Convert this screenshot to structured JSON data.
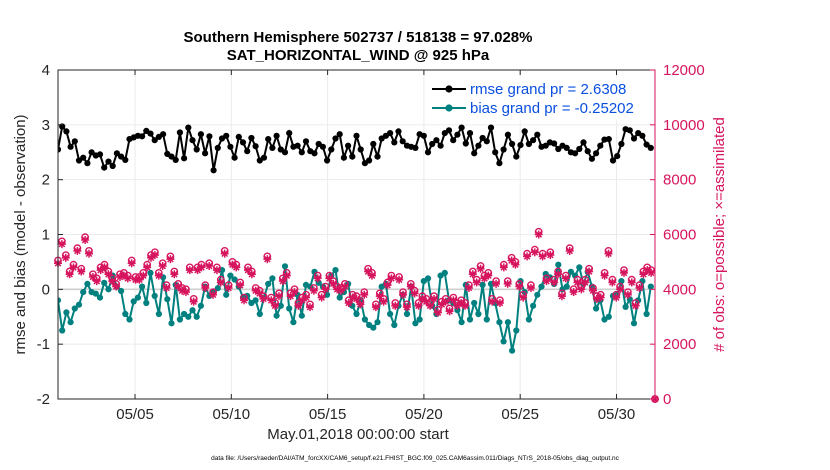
{
  "chart_data": {
    "type": "line",
    "title": "Southern Hemisphere 502737 / 518138 = 97.028%",
    "subtitle": "SAT_HORIZONTAL_WIND @ 925 hPa",
    "xlabel": "May.01,2018 00:00:00 start",
    "ylabel": "rmse and bias (model - observation)",
    "y2label": "# of obs: o=possible; ×=assimilated",
    "footnote": "data file: /Users/raeder/DAI/ATM_forcXX/CAM6_setup/f.e21.FHIST_BGC.f09_025.CAM6assim.011/Diags_NTrS_2018-05/obs_diag_output.nc",
    "xlim": [
      1,
      32
    ],
    "ylim": [
      -2,
      4
    ],
    "y2lim": [
      0,
      12000
    ],
    "x_tick_labels": [
      "05/05",
      "05/10",
      "05/15",
      "05/20",
      "05/25",
      "05/30"
    ],
    "y_tick_labels": [
      "4",
      "3",
      "2",
      "1",
      "0",
      "-1",
      "-2"
    ],
    "y2_tick_labels": [
      "12000",
      "10000",
      "8000",
      "6000",
      "4000",
      "2000",
      "0"
    ],
    "colors": {
      "rmse": "#000000",
      "bias": "#00807f",
      "obs": "#d6155e",
      "legend_text": "#0a4fe0",
      "axis_right": "#d6155e"
    },
    "series": [
      {
        "name": "rmse grand pr = 2.6308",
        "axis": "left",
        "values": [
          2.55,
          2.97,
          2.88,
          2.6,
          2.7,
          2.35,
          2.4,
          2.3,
          2.5,
          2.44,
          2.46,
          2.22,
          2.33,
          2.25,
          2.48,
          2.42,
          2.36,
          2.74,
          2.77,
          2.8,
          2.79,
          2.89,
          2.84,
          2.72,
          2.78,
          2.83,
          2.47,
          2.42,
          2.36,
          2.86,
          2.39,
          2.95,
          2.72,
          2.55,
          2.83,
          2.48,
          2.79,
          2.17,
          2.58,
          2.75,
          2.8,
          2.6,
          2.4,
          2.78,
          2.68,
          2.52,
          2.76,
          2.61,
          2.35,
          2.4,
          2.74,
          2.58,
          2.8,
          2.55,
          2.5,
          2.85,
          2.6,
          2.62,
          2.5,
          2.7,
          2.52,
          2.48,
          2.65,
          2.6,
          2.35,
          2.55,
          2.75,
          2.83,
          2.4,
          2.62,
          2.42,
          2.8,
          2.55,
          2.3,
          2.35,
          2.65,
          2.42,
          2.75,
          2.8,
          2.85,
          2.68,
          2.88,
          2.7,
          2.62,
          2.6,
          2.58,
          2.83,
          2.8,
          2.5,
          2.65,
          2.72,
          2.62,
          2.85,
          2.9,
          2.72,
          2.82,
          2.95,
          2.66,
          2.85,
          2.48,
          2.62,
          2.76,
          2.7,
          2.95,
          2.5,
          2.3,
          2.55,
          2.82,
          2.65,
          2.42,
          2.63,
          2.88,
          2.65,
          2.72,
          2.82,
          2.6,
          2.62,
          2.68,
          2.66,
          2.56,
          2.62,
          2.58,
          2.5,
          2.48,
          2.56,
          2.68,
          2.52,
          2.38,
          2.48,
          2.62,
          2.73,
          2.74,
          2.35,
          2.43,
          2.65,
          2.92,
          2.9,
          2.75,
          2.85,
          2.8,
          2.64,
          2.58
        ]
      },
      {
        "name": "bias grand pr = -0.25202",
        "axis": "left",
        "values": [
          -0.2,
          -0.75,
          -0.42,
          -0.6,
          -0.35,
          -0.28,
          -0.05,
          0.1,
          -0.05,
          -0.08,
          -0.15,
          0.12,
          0.0,
          0.25,
          0.05,
          -0.03,
          -0.45,
          -0.55,
          -0.22,
          -0.15,
          0.05,
          -0.25,
          0.3,
          -0.12,
          -0.45,
          0.22,
          -0.18,
          -0.62,
          0.08,
          -0.55,
          -0.45,
          -0.5,
          -0.38,
          -0.5,
          -0.3,
          0.05,
          -0.12,
          -0.05,
          0.02,
          0.35,
          -0.1,
          0.25,
          0.18,
          0.05,
          -0.15,
          -0.12,
          -0.25,
          -0.2,
          -0.45,
          -0.15,
          0.1,
          0.2,
          -0.48,
          -0.3,
          0.42,
          -0.35,
          -0.6,
          -0.1,
          -0.48,
          0.08,
          0.05,
          0.32,
          0.12,
          0.05,
          -0.1,
          0.25,
          0.35,
          -0.15,
          -0.05,
          0.1,
          -0.3,
          -0.45,
          -0.2,
          -0.55,
          -0.65,
          -0.7,
          -0.6,
          0.05,
          0.1,
          -0.45,
          -0.65,
          -0.3,
          -0.1,
          -0.45,
          0.05,
          -0.62,
          -0.55,
          0.15,
          0.2,
          -0.3,
          -0.45,
          0.25,
          0.3,
          -0.2,
          -0.25,
          -0.38,
          -0.6,
          0.08,
          -0.55,
          -0.25,
          -0.45,
          0.08,
          -0.55,
          0.1,
          -0.25,
          -0.6,
          -0.95,
          -0.6,
          -1.12,
          -0.75,
          0.15,
          -0.05,
          -0.55,
          -0.3,
          -0.1,
          0.05,
          0.28,
          0.22,
          0.1,
          0.45,
          0.0,
          0.05,
          0.32,
          0.25,
          0.4,
          0.1,
          0.32,
          0.05,
          -0.35,
          -0.2,
          -0.55,
          -0.5,
          -0.12,
          -0.1,
          0.15,
          -0.32,
          -0.18,
          -0.62,
          -0.2,
          0.15,
          -0.45,
          0.05
        ]
      },
      {
        "name": "obs possible",
        "axis": "right",
        "values": [
          5050,
          5750,
          5250,
          4650,
          4900,
          5500,
          4750,
          5900,
          5400,
          4550,
          4400,
          4800,
          4900,
          4650,
          4400,
          4200,
          4550,
          4600,
          4500,
          5050,
          4450,
          4450,
          4600,
          4900,
          5250,
          5350,
          4600,
          4950,
          4150,
          5200,
          4650,
          4200,
          4050,
          4000,
          4800,
          3650,
          4800,
          4900,
          4150,
          4950,
          3900,
          4800,
          4350,
          5400,
          4150,
          5000,
          4900,
          4250,
          3700,
          4800,
          4650,
          4050,
          3950,
          3750,
          5200,
          3700,
          3500,
          3850,
          4400,
          4600,
          3850,
          4000,
          3500,
          3700,
          3800,
          3450,
          4050,
          4500,
          3800,
          4100,
          4500,
          4300,
          4100,
          4050,
          4200,
          3600,
          3800,
          3750,
          3550,
          3900,
          4750,
          4600,
          3450,
          3850,
          3650,
          4250,
          4500,
          3500,
          4450,
          3900,
          3450,
          4200,
          3950,
          3500,
          3750,
          3650,
          3500,
          3750,
          3250,
          3550,
          3650,
          3300,
          3700,
          3500,
          3600,
          3500,
          4150,
          4650,
          4350,
          4850,
          4500,
          4600,
          3650,
          4300,
          3600,
          4900,
          4300,
          5150,
          5000,
          4200,
          3800,
          5300,
          4150,
          5450,
          6100,
          5300,
          4400,
          5350,
          4350,
          4650,
          3850,
          4500,
          5500,
          4000,
          4350,
          4100,
          4350,
          4750,
          4050,
          3750,
          3800,
          4600,
          5400,
          4350,
          3800,
          4100,
          4700,
          3900,
          4350,
          3500,
          4150,
          4650,
          4800,
          4700,
          0
        ]
      },
      {
        "name": "obs assimilated",
        "axis": "right",
        "values": [
          4950,
          5650,
          5150,
          4550,
          4800,
          5400,
          4650,
          5800,
          5300,
          4450,
          4300,
          4700,
          4800,
          4550,
          4300,
          4100,
          4450,
          4500,
          4400,
          4950,
          4350,
          4350,
          4500,
          4800,
          5150,
          5250,
          4500,
          4850,
          4050,
          5100,
          4550,
          4100,
          3950,
          3900,
          4700,
          3550,
          4700,
          4800,
          4050,
          4850,
          3800,
          4700,
          4250,
          5300,
          4050,
          4900,
          4800,
          4150,
          3600,
          4700,
          4550,
          3950,
          3850,
          3650,
          5100,
          3600,
          3400,
          3750,
          4300,
          4500,
          3750,
          3900,
          3400,
          3600,
          3700,
          3350,
          3950,
          4400,
          3700,
          4000,
          4400,
          4200,
          4000,
          3950,
          4100,
          3500,
          3700,
          3650,
          3450,
          3800,
          4650,
          4500,
          3350,
          3750,
          3550,
          4150,
          4400,
          3400,
          4350,
          3800,
          3350,
          4100,
          3850,
          3400,
          3650,
          3550,
          3400,
          3650,
          3150,
          3450,
          3550,
          3200,
          3600,
          3400,
          3500,
          3400,
          4050,
          4550,
          4250,
          4750,
          4400,
          4500,
          3550,
          4200,
          3500,
          4800,
          4200,
          5050,
          4900,
          4100,
          3700,
          5200,
          4050,
          5350,
          6000,
          5200,
          4300,
          5250,
          4250,
          4550,
          3750,
          4400,
          5400,
          3900,
          4250,
          4000,
          4250,
          4650,
          3950,
          3650,
          3700,
          4500,
          5300,
          4250,
          3700,
          4000,
          4600,
          3800,
          4250,
          3400,
          4050,
          4550,
          4700,
          4600,
          0
        ]
      }
    ]
  }
}
